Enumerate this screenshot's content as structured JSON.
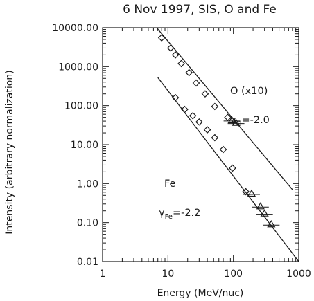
{
  "chart_data": {
    "type": "scatter",
    "title": "6 Nov 1997, SIS, O and Fe",
    "xlabel": "Energy (MeV/nuc)",
    "ylabel": "Intensity (arbitrary normalization)",
    "xscale": "log",
    "yscale": "log",
    "xlim": [
      1,
      1000
    ],
    "ylim": [
      0.01,
      10000
    ],
    "x_ticks": [
      "1",
      "10",
      "100",
      "1000"
    ],
    "y_ticks": [
      "0.01",
      "0.10",
      "1.00",
      "10.00",
      "100.00",
      "1000.00",
      "10000.00"
    ],
    "series": [
      {
        "name": "O (x10)",
        "color": "#1a1a1a",
        "diamonds": [
          [
            8,
            5500
          ],
          [
            11,
            3000
          ],
          [
            13,
            2000
          ],
          [
            16,
            1200
          ],
          [
            21,
            700
          ],
          [
            27,
            380
          ],
          [
            37,
            200
          ],
          [
            52,
            95
          ],
          [
            82,
            50
          ]
        ],
        "triangles": [
          [
            95,
            42
          ],
          [
            110,
            36
          ]
        ],
        "fit": {
          "gamma": -2.0,
          "x_range": [
            6.8,
            800
          ],
          "y_at_10": 4500
        }
      },
      {
        "name": "Fe",
        "color": "#1a1a1a",
        "diamonds": [
          [
            13,
            160
          ],
          [
            18,
            80
          ],
          [
            24,
            55
          ],
          [
            30,
            38
          ],
          [
            40,
            24
          ],
          [
            52,
            15
          ],
          [
            70,
            7.5
          ],
          [
            97,
            2.5
          ],
          [
            155,
            0.62
          ]
        ],
        "triangles": [
          [
            190,
            0.55
          ],
          [
            260,
            0.26
          ],
          [
            300,
            0.17
          ],
          [
            380,
            0.09
          ]
        ],
        "fit": {
          "gamma": -2.2,
          "x_range": [
            7,
            1000
          ],
          "y_at_10": 240
        }
      }
    ],
    "annotations": [
      {
        "series": "O (x10)",
        "label": "O (x10)",
        "gamma_sym": "γ",
        "gamma_sub": "O",
        "gamma_text": "=-2.0"
      },
      {
        "series": "Fe",
        "label": "Fe",
        "gamma_sym": "γ",
        "gamma_sub": "Fe",
        "gamma_text": "=-2.2"
      }
    ]
  }
}
